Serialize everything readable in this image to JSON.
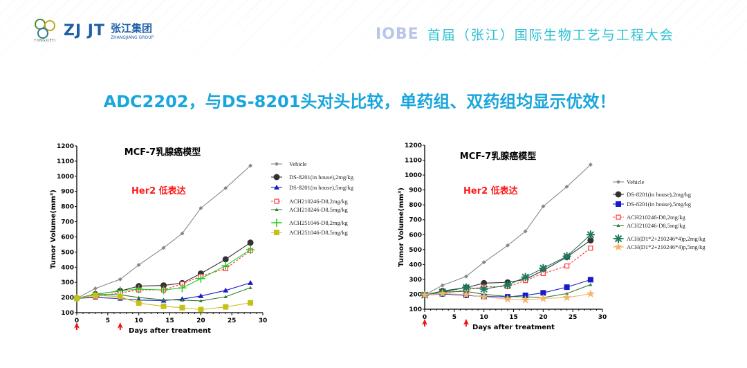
{
  "header": {
    "left_logo_text": "ZJ JT",
    "left_logo_small": "TONGXIETI",
    "group_name_cn": "张江集团",
    "group_name_en": "ZHANGJIANG GROUP",
    "conf_logo": "IOBE",
    "conf_title": "首届（张江）国际生物工艺与工程大会"
  },
  "headline": "ADC2202，与DS-8201头对头比较，单药组、双药组均显示优效！",
  "colors": {
    "headline": "#1aa6dc",
    "conf_title": "#2cc0d2",
    "annotation": "#ff1a1a"
  },
  "chart_data": [
    {
      "type": "line",
      "title": "MCF-7乳腺癌模型",
      "annotation": "Her2 低表达",
      "xlabel": "Days after treatment",
      "ylabel": "Tumor Volume(mm³)",
      "xlim": [
        0,
        30
      ],
      "ylim": [
        100,
        1200
      ],
      "xticks": [
        0,
        5,
        10,
        15,
        20,
        25,
        30
      ],
      "yticks": [
        100,
        200,
        300,
        400,
        500,
        600,
        700,
        800,
        900,
        1000,
        1100,
        1200
      ],
      "dosing_days": [
        0,
        7
      ],
      "grid": false,
      "legend": "right",
      "x": [
        0,
        3,
        7,
        10,
        14,
        17,
        20,
        24,
        28
      ],
      "series": [
        {
          "name": "Vehicle",
          "marker": "diamond",
          "color": "#888888",
          "values": [
            195,
            260,
            320,
            415,
            528,
            622,
            790,
            922,
            1070
          ]
        },
        {
          "name": "DS-8201(in house),2mg/kg",
          "marker": "circle",
          "color": "#333333",
          "values": [
            195,
            222,
            243,
            275,
            280,
            295,
            358,
            452,
            562
          ]
        },
        {
          "name": "DS-8201(in house),5mg/kg",
          "marker": "triangle",
          "color": "#1a1acc",
          "values": [
            195,
            200,
            193,
            183,
            180,
            190,
            210,
            247,
            297
          ]
        },
        {
          "name": "ACH210246-D8,2mg/kg",
          "marker": "open-square",
          "dashed": true,
          "color": "#ff3333",
          "values": [
            195,
            205,
            230,
            250,
            250,
            290,
            340,
            390,
            510
          ]
        },
        {
          "name": "ACH210246-D8,5mg/kg",
          "marker": "small-triangle",
          "color": "#2e7d32",
          "values": [
            195,
            220,
            218,
            200,
            185,
            183,
            178,
            205,
            265
          ]
        },
        {
          "name": "ACH251046-D8,2mg/kg",
          "marker": "plus",
          "color": "#22cc22",
          "values": [
            195,
            220,
            245,
            255,
            250,
            263,
            325,
            410,
            515
          ]
        },
        {
          "name": "ACH251046-D8,5mg/kg",
          "marker": "square",
          "color": "#c8c01a",
          "values": [
            195,
            215,
            205,
            163,
            142,
            133,
            120,
            138,
            165
          ]
        }
      ]
    },
    {
      "type": "line",
      "title": "MCF-7乳腺癌模型",
      "annotation": "Her2 低表达",
      "xlabel": "Days after treatment",
      "ylabel": "Tumor Volume(mm³)",
      "xlim": [
        0,
        30
      ],
      "ylim": [
        100,
        1200
      ],
      "xticks": [
        0,
        5,
        10,
        15,
        20,
        25,
        30
      ],
      "yticks": [
        100,
        200,
        300,
        400,
        500,
        600,
        700,
        800,
        900,
        1000,
        1100,
        1200
      ],
      "dosing_days": [
        0,
        7
      ],
      "grid": false,
      "legend": "right",
      "x": [
        0,
        3,
        7,
        10,
        14,
        17,
        20,
        24,
        28
      ],
      "series": [
        {
          "name": "Vehicle",
          "marker": "diamond",
          "color": "#888888",
          "values": [
            195,
            260,
            320,
            415,
            528,
            622,
            790,
            922,
            1070
          ]
        },
        {
          "name": "DS-8201(in house),2mg/kg",
          "marker": "circle",
          "color": "#333333",
          "values": [
            195,
            222,
            245,
            275,
            280,
            300,
            360,
            450,
            562
          ]
        },
        {
          "name": "DS-8201(in house),5mg/kg",
          "marker": "square",
          "color": "#1a1acc",
          "values": [
            195,
            202,
            193,
            185,
            183,
            193,
            210,
            248,
            298
          ]
        },
        {
          "name": "ACH210246-D8,2mg/kg",
          "marker": "open-square",
          "dashed": true,
          "color": "#ff3333",
          "values": [
            195,
            205,
            230,
            250,
            252,
            292,
            340,
            390,
            510
          ]
        },
        {
          "name": "ACH210246-D8,5mg/kg",
          "marker": "small-triangle",
          "color": "#2e7d32",
          "values": [
            195,
            215,
            220,
            200,
            185,
            183,
            178,
            205,
            265
          ]
        },
        {
          "name": "ACH(D1*2+210246*4)p,2mg/kg",
          "marker": "asterisk",
          "color": "#1e7a5a",
          "values": [
            195,
            215,
            245,
            235,
            262,
            315,
            375,
            455,
            600
          ]
        },
        {
          "name": "ACH(D1*2+210246*4)p,5mg/kg",
          "marker": "star",
          "color": "#f5b46a",
          "values": [
            195,
            205,
            197,
            183,
            168,
            162,
            172,
            178,
            203
          ]
        }
      ]
    }
  ]
}
